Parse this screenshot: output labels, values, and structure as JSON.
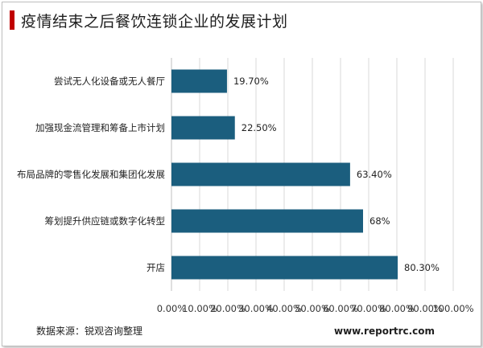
{
  "title": "疫情结束之后餐饮连锁企业的发展计划",
  "source": "数据来源：锐观咨询整理",
  "site": "www.reportrc.com",
  "colors": {
    "bar": "#1b5e7e",
    "title_accent": "#c00000",
    "grid": "#d9d9d9"
  },
  "chart_data": {
    "type": "bar",
    "orientation": "horizontal",
    "categories": [
      "尝试无人化设备或无人餐厅",
      "加强现金流管理和筹备上市计划",
      "布局品牌的零售化发展和集团化发展",
      "筹划提升供应链或数字化转型",
      "开店"
    ],
    "values": [
      19.7,
      22.5,
      63.4,
      68,
      80.3
    ],
    "data_labels": [
      "19.70%",
      "22.50%",
      "63.40%",
      "68%",
      "80.30%"
    ],
    "xlim": [
      0,
      100
    ],
    "x_ticks": [
      "0.00%",
      "10.00%",
      "20.00%",
      "30.00%",
      "40.00%",
      "50.00%",
      "60.00%",
      "70.00%",
      "80.00%",
      "90.00%",
      "100.00%"
    ],
    "grid": true,
    "xlabel": "",
    "ylabel": ""
  }
}
